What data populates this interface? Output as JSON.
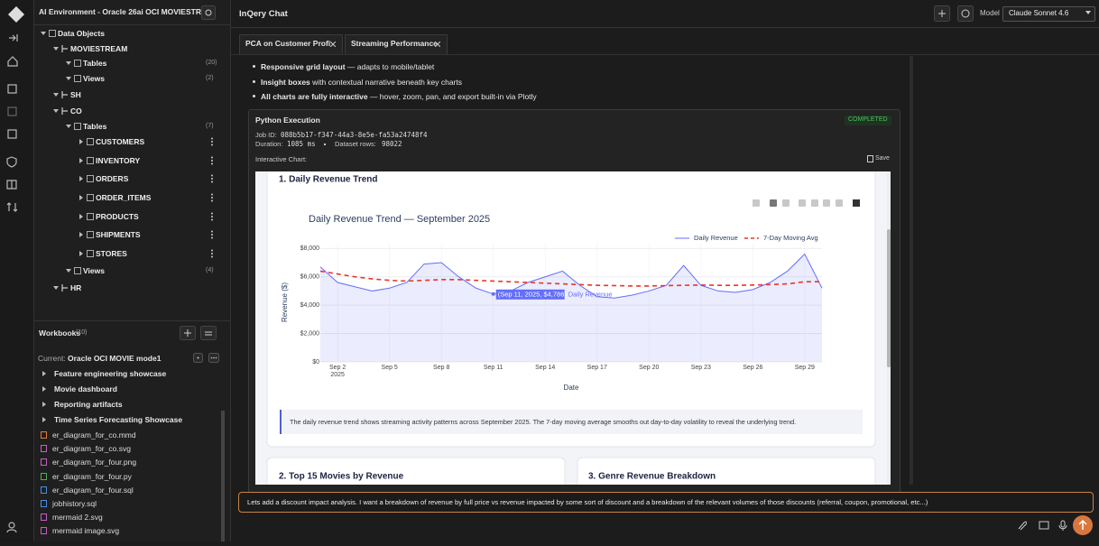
{
  "sidebar": {
    "env_title": "AI Environment - Oracle 26ai OCI MOVIESTRE...",
    "tree": [
      {
        "label": "Data Objects",
        "level": 0,
        "y": 37
      },
      {
        "label": "MOVIESTREAM",
        "level": 1,
        "y": 54
      },
      {
        "label": "Tables",
        "level": 2,
        "count": "(20)",
        "y": 70
      },
      {
        "label": "Views",
        "level": 2,
        "count": "(2)",
        "y": 87
      },
      {
        "label": "SH",
        "level": 1,
        "y": 105
      },
      {
        "label": "CO",
        "level": 1,
        "y": 123
      },
      {
        "label": "Tables",
        "level": 2,
        "count": "(7)",
        "y": 140
      },
      {
        "label": "CUSTOMERS",
        "level": 3,
        "y": 157
      },
      {
        "label": "INVENTORY",
        "level": 3,
        "y": 178
      },
      {
        "label": "ORDERS",
        "level": 3,
        "y": 198
      },
      {
        "label": "ORDER_ITEMS",
        "level": 3,
        "y": 219
      },
      {
        "label": "PRODUCTS",
        "level": 3,
        "y": 240
      },
      {
        "label": "SHIPMENTS",
        "level": 3,
        "y": 260
      },
      {
        "label": "STORES",
        "level": 3,
        "y": 281
      },
      {
        "label": "Views",
        "level": 2,
        "count": "(4)",
        "y": 300
      },
      {
        "label": "HR",
        "level": 1,
        "y": 319
      }
    ],
    "workbooks": {
      "title": "Workbooks",
      "count": "(10)",
      "current_label": "Current:",
      "current": "Oracle OCI MOVIE mode1",
      "folders": [
        "Feature engineering showcase",
        "Movie dashboard",
        "Reporting artifacts",
        "Time Series Forecasting Showcase"
      ],
      "files": [
        {
          "name": "er_diagram_for_co.mmd",
          "color": "#e07b39"
        },
        {
          "name": "er_diagram_for_co.svg",
          "color": "#c75fc7"
        },
        {
          "name": "er_diagram_for_four.png",
          "color": "#c75fc7"
        },
        {
          "name": "er_diagram_for_four.py",
          "color": "#4caf50"
        },
        {
          "name": "er_diagram_for_four.sql",
          "color": "#4a8fe0"
        },
        {
          "name": "jobhistory.sql",
          "color": "#4a8fe0"
        },
        {
          "name": "mermaid 2.svg",
          "color": "#c75fc7"
        },
        {
          "name": "mermaid image.svg",
          "color": "#c75fc7"
        }
      ]
    }
  },
  "chat": {
    "title": "InQery Chat",
    "model_label": "Model",
    "model": "Claude Sonnet 4.6",
    "tabs": [
      "PCA on Customer Profi",
      "Streaming Performance"
    ],
    "bullets": [
      {
        "bold": "Responsive grid layout",
        "text": " — adapts to mobile/tablet"
      },
      {
        "bold": "Insight boxes",
        "text": " with contextual narrative beneath key charts"
      },
      {
        "bold": "All charts are fully interactive",
        "text": " — hover, zoom, pan, and export built-in via Plotly"
      }
    ],
    "execution": {
      "title": "Python Execution",
      "status": "COMPLETED",
      "job_label": "Job ID:",
      "job_id": "088b5b17-f347-44a3-8e5e-fa53a24748f4",
      "duration_label": "Duration:",
      "duration": "1085 ms",
      "rows_label": "Dataset rows:",
      "rows": "98022",
      "chart_label": "Interactive Chart:",
      "save": "Save"
    },
    "sections": [
      {
        "title": "1. Daily Revenue Trend",
        "insight": "The daily revenue trend shows streaming activity patterns across September 2025. The 7-day moving average smooths out day-to-day volatility to reveal the underlying trend."
      },
      {
        "title": "2. Top 15 Movies by Revenue"
      },
      {
        "title": "3. Genre Revenue Breakdown"
      }
    ],
    "input": "Lets add a discount impact analysis. I want a breakdown of revenue by full price vs revenue impacted by some sort of discount and a breakdown of the relevant volumes of those discounts (referral, coupon, promotional, etc...)"
  },
  "chart_data": {
    "type": "line",
    "title": "Daily Revenue Trend — September 2025",
    "xlabel": "Date",
    "ylabel": "Revenue ($)",
    "x": [
      "2025-09-01",
      "2025-09-02",
      "2025-09-03",
      "2025-09-04",
      "2025-09-05",
      "2025-09-06",
      "2025-09-07",
      "2025-09-08",
      "2025-09-09",
      "2025-09-10",
      "2025-09-11",
      "2025-09-12",
      "2025-09-13",
      "2025-09-14",
      "2025-09-15",
      "2025-09-16",
      "2025-09-17",
      "2025-09-18",
      "2025-09-19",
      "2025-09-20",
      "2025-09-21",
      "2025-09-22",
      "2025-09-23",
      "2025-09-24",
      "2025-09-25",
      "2025-09-26",
      "2025-09-27",
      "2025-09-28",
      "2025-09-29",
      "2025-09-30"
    ],
    "series": [
      {
        "name": "Daily Revenue",
        "color": "#636efa",
        "fill": true,
        "values": [
          6700,
          5600,
          5300,
          5000,
          5200,
          5600,
          6900,
          7000,
          6000,
          5200,
          4786,
          5000,
          5600,
          6000,
          6400,
          5400,
          4600,
          4500,
          4700,
          5000,
          5400,
          6800,
          5400,
          5000,
          4900,
          5100,
          5600,
          6400,
          7600,
          5200
        ]
      },
      {
        "name": "7-Day Moving Avg",
        "color": "#e8352a",
        "dash": true,
        "values": [
          6400,
          6200,
          6000,
          5850,
          5750,
          5700,
          5750,
          5800,
          5800,
          5750,
          5700,
          5650,
          5600,
          5550,
          5500,
          5450,
          5400,
          5380,
          5350,
          5350,
          5380,
          5400,
          5420,
          5400,
          5400,
          5420,
          5450,
          5500,
          5650,
          5650
        ]
      }
    ],
    "xlim": [
      "2025-09-01",
      "2025-09-30"
    ],
    "xticks": [
      {
        "value": "2025-09-02",
        "label": "Sep 2"
      },
      {
        "value": "2025-09-05",
        "label": "Sep 5"
      },
      {
        "value": "2025-09-08",
        "label": "Sep 8"
      },
      {
        "value": "2025-09-11",
        "label": "Sep 11"
      },
      {
        "value": "2025-09-14",
        "label": "Sep 14"
      },
      {
        "value": "2025-09-17",
        "label": "Sep 17"
      },
      {
        "value": "2025-09-20",
        "label": "Sep 20"
      },
      {
        "value": "2025-09-23",
        "label": "Sep 23"
      },
      {
        "value": "2025-09-26",
        "label": "Sep 26"
      },
      {
        "value": "2025-09-29",
        "label": "Sep 29"
      }
    ],
    "x_year": "2025",
    "ylim": [
      0,
      8400
    ],
    "yticks": [
      {
        "value": 0,
        "label": "$0"
      },
      {
        "value": 2000,
        "label": "$2,000"
      },
      {
        "value": 4000,
        "label": "$4,000"
      },
      {
        "value": 6000,
        "label": "$6,000"
      },
      {
        "value": 8000,
        "label": "$8,000"
      }
    ],
    "grid": true,
    "legend": "top-right",
    "hover": {
      "index": 10,
      "label": "(Sep 11, 2025, $4,786)"
    }
  }
}
